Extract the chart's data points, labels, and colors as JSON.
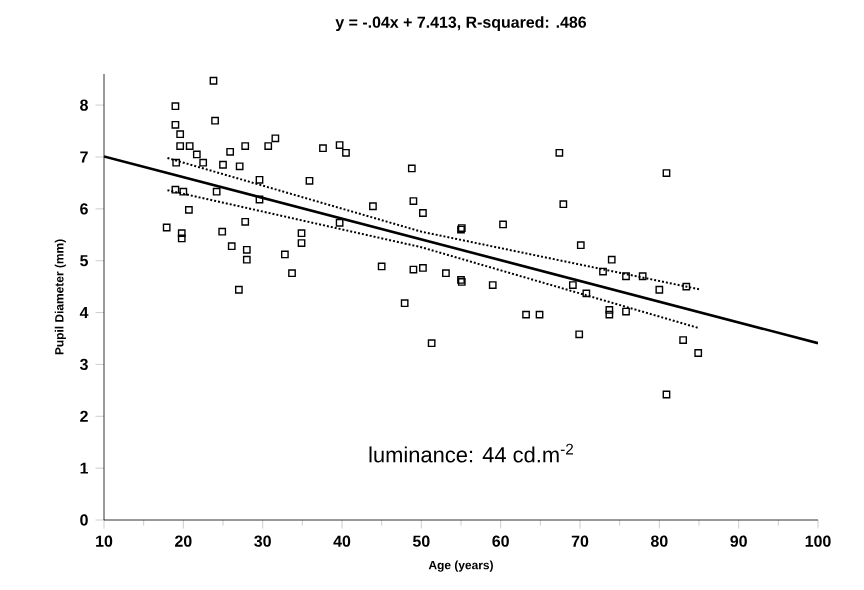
{
  "chart_data": {
    "type": "scatter",
    "title": "y = -.04x + 7.413, R-squared: .486",
    "xlabel": "Age (years)",
    "ylabel": "Pupil Diameter (mm)",
    "annotations": [
      "luminance: 44 cd.m$^{-2}$"
    ],
    "xlim": [
      10,
      100
    ],
    "xticks": [
      10,
      20,
      30,
      40,
      50,
      60,
      70,
      80,
      90,
      100
    ],
    "ylim": [
      0,
      8.6
    ],
    "yticks": [
      0,
      1,
      2,
      3,
      4,
      5,
      6,
      7,
      8
    ],
    "grid": false,
    "series": [
      {
        "marker": "square",
        "color": "#000000",
        "x": [
          19.0,
          19.0,
          19.6,
          24.0,
          23.8,
          19.6,
          20.8,
          21.7,
          19.1,
          22.5,
          25.0,
          25.9,
          27.8,
          30.7,
          31.6,
          37.6,
          39.7,
          40.5,
          48.8,
          27.1,
          29.6,
          35.9,
          19.0,
          20.0,
          24.2,
          29.6,
          43.9,
          49.0,
          50.2,
          39.7,
          20.7,
          17.9,
          19.8,
          19.8,
          24.9,
          26.1,
          27.8,
          28.0,
          28.0,
          34.9,
          34.9,
          32.8,
          33.7,
          45.0,
          49.0,
          50.2,
          53.1,
          55.0,
          27.0,
          47.9,
          51.3,
          55.0,
          80.9,
          67.4,
          67.9,
          60.3,
          55.1,
          70.1,
          74.0,
          72.9,
          75.8,
          77.9,
          80.0,
          83.4,
          55.1,
          59.0,
          69.1,
          70.8,
          73.7,
          73.7,
          75.8,
          63.2,
          64.9,
          69.9,
          83.0,
          84.9,
          80.9
        ],
        "values": [
          7.98,
          7.62,
          7.44,
          7.7,
          8.47,
          7.21,
          7.21,
          7.05,
          6.89,
          6.89,
          6.85,
          7.1,
          7.21,
          7.21,
          7.36,
          7.17,
          7.23,
          7.08,
          6.78,
          6.82,
          6.56,
          6.54,
          6.37,
          6.33,
          6.33,
          6.18,
          6.05,
          6.15,
          5.92,
          5.73,
          5.98,
          5.64,
          5.53,
          5.43,
          5.56,
          5.28,
          5.75,
          5.21,
          5.02,
          5.53,
          5.34,
          5.12,
          4.76,
          4.89,
          4.83,
          4.86,
          4.76,
          4.63,
          4.44,
          4.18,
          3.41,
          5.6,
          6.69,
          7.08,
          6.09,
          5.7,
          5.63,
          5.3,
          5.02,
          4.79,
          4.7,
          4.7,
          4.44,
          4.5,
          4.59,
          4.53,
          4.53,
          4.37,
          4.05,
          3.96,
          4.02,
          3.96,
          3.96,
          3.58,
          3.47,
          3.22,
          2.42
        ]
      },
      {
        "type": "line",
        "line_style": "solid",
        "marker": "none",
        "color": "#000000",
        "x": [
          10,
          100
        ],
        "values": [
          7.01,
          3.41
        ]
      },
      {
        "type": "line",
        "line_style": "dotted",
        "marker": "none",
        "color": "#000000",
        "x": [
          18,
          50,
          85
        ],
        "values": [
          6.98,
          5.56,
          4.45
        ]
      },
      {
        "type": "line",
        "line_style": "dotted",
        "marker": "none",
        "color": "#000000",
        "x": [
          18,
          50,
          85
        ],
        "values": [
          6.36,
          5.26,
          3.7
        ]
      }
    ]
  }
}
